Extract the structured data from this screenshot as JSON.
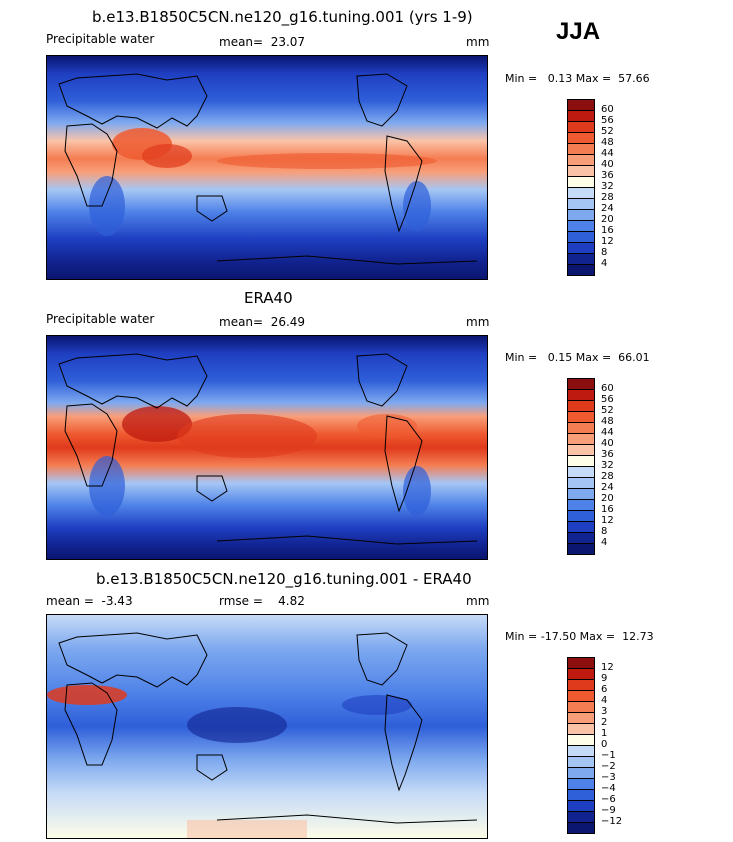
{
  "season": "JJA",
  "panels": [
    {
      "title": "b.e13.B1850C5CN.ne120_g16.tuning.001 (yrs 1-9)",
      "variable": "Precipitable water",
      "stat": "mean=  23.07",
      "units": "mm",
      "minmax": "Min =   0.13 Max =  57.66",
      "levels": [
        "60",
        "56",
        "52",
        "48",
        "44",
        "40",
        "36",
        "32",
        "28",
        "24",
        "20",
        "16",
        "12",
        "8",
        "4"
      ],
      "colors": [
        "#8b0f0f",
        "#bf1a10",
        "#df3a1c",
        "#ef5a30",
        "#f57d52",
        "#f89f7a",
        "#fac3a8",
        "#fdfde8",
        "#c6dbf7",
        "#a5c6f5",
        "#7ea9ef",
        "#4e82e8",
        "#2f5fd9",
        "#1f3fc2",
        "#11238f",
        "#0a1670"
      ]
    },
    {
      "title": "ERA40",
      "variable": "Precipitable water",
      "stat": "mean=  26.49",
      "units": "mm",
      "minmax": "Min =   0.15 Max =  66.01",
      "levels": [
        "60",
        "56",
        "52",
        "48",
        "44",
        "40",
        "36",
        "32",
        "28",
        "24",
        "20",
        "16",
        "12",
        "8",
        "4"
      ],
      "colors": [
        "#8b0f0f",
        "#bf1a10",
        "#df3a1c",
        "#ef5a30",
        "#f57d52",
        "#f89f7a",
        "#fac3a8",
        "#fdfde8",
        "#c6dbf7",
        "#a5c6f5",
        "#7ea9ef",
        "#4e82e8",
        "#2f5fd9",
        "#1f3fc2",
        "#11238f",
        "#0a1670"
      ]
    },
    {
      "title": "b.e13.B1850C5CN.ne120_g16.tuning.001 - ERA40",
      "stat_left": "mean =  -3.43",
      "stat": "rmse =    4.82",
      "units": "mm",
      "minmax": "Min = -17.50 Max =  12.73",
      "levels": [
        "12",
        "9",
        "6",
        "4",
        "3",
        "2",
        "1",
        "0",
        "−1",
        "−2",
        "−3",
        "−4",
        "−6",
        "−9",
        "−12"
      ],
      "colors": [
        "#8b0f0f",
        "#bf1a10",
        "#df3a1c",
        "#ef5a30",
        "#f57d52",
        "#f89f7a",
        "#fac3a8",
        "#fdfde8",
        "#c6dbf7",
        "#a5c6f5",
        "#7ea9ef",
        "#4e82e8",
        "#2f5fd9",
        "#1f3fc2",
        "#11238f",
        "#0a1670"
      ]
    }
  ]
}
